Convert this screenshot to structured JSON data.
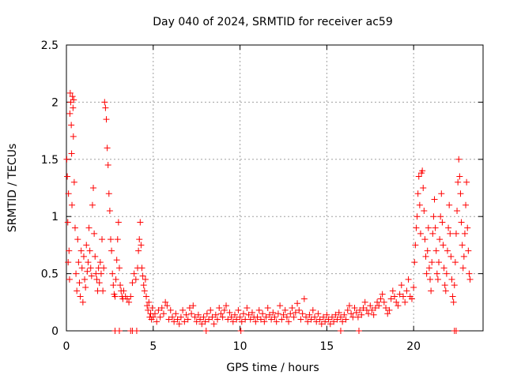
{
  "chart_data": {
    "type": "scatter",
    "title": "Day 040 of 2024, SRMTID for receiver ac59",
    "xlabel": "GPS time / hours",
    "ylabel": "SRMTID / TECUs",
    "xlim": [
      0,
      24
    ],
    "ylim": [
      0,
      2.5
    ],
    "grid": true,
    "marker": "+",
    "color": "#ff0000",
    "x_ticks": [
      0,
      5,
      10,
      15,
      20
    ],
    "x_tick_labels": [
      "0",
      "5",
      "10",
      "15",
      "20"
    ],
    "y_ticks": [
      0,
      0.5,
      1,
      1.5,
      2,
      2.5
    ],
    "y_tick_labels": [
      "0",
      "0.5",
      "1",
      "1.5",
      "2",
      "2.5"
    ],
    "series": [
      {
        "name": "SRMTID",
        "points": [
          [
            0.02,
            1.5
          ],
          [
            0.05,
            1.35
          ],
          [
            0.08,
            0.95
          ],
          [
            0.1,
            0.6
          ],
          [
            0.12,
            1.2
          ],
          [
            0.15,
            0.7
          ],
          [
            0.18,
            0.45
          ],
          [
            0.2,
            1.9
          ],
          [
            0.22,
            2.08
          ],
          [
            0.25,
            2.0
          ],
          [
            0.28,
            1.8
          ],
          [
            0.3,
            1.55
          ],
          [
            0.32,
            1.1
          ],
          [
            0.35,
            2.05
          ],
          [
            0.38,
            1.95
          ],
          [
            0.4,
            1.7
          ],
          [
            0.42,
            2.02
          ],
          [
            0.45,
            1.3
          ],
          [
            0.5,
            0.9
          ],
          [
            0.55,
            0.5
          ],
          [
            0.6,
            0.35
          ],
          [
            0.65,
            0.8
          ],
          [
            0.7,
            0.6
          ],
          [
            0.75,
            0.42
          ],
          [
            0.8,
            0.3
          ],
          [
            0.85,
            0.7
          ],
          [
            0.9,
            0.55
          ],
          [
            0.95,
            0.25
          ],
          [
            1.0,
            0.65
          ],
          [
            1.05,
            0.45
          ],
          [
            1.1,
            0.38
          ],
          [
            1.15,
            0.75
          ],
          [
            1.2,
            0.52
          ],
          [
            1.25,
            0.6
          ],
          [
            1.3,
            0.9
          ],
          [
            1.35,
            0.7
          ],
          [
            1.4,
            0.55
          ],
          [
            1.45,
            0.48
          ],
          [
            1.5,
            1.1
          ],
          [
            1.55,
            1.25
          ],
          [
            1.6,
            0.85
          ],
          [
            1.65,
            0.65
          ],
          [
            1.7,
            0.5
          ],
          [
            1.75,
            0.45
          ],
          [
            1.8,
            0.35
          ],
          [
            1.85,
            0.55
          ],
          [
            1.9,
            0.42
          ],
          [
            1.95,
            0.6
          ],
          [
            2.0,
            0.5
          ],
          [
            2.05,
            0.8
          ],
          [
            2.1,
            0.35
          ],
          [
            2.15,
            0.55
          ],
          [
            2.2,
            2.0
          ],
          [
            2.25,
            1.95
          ],
          [
            2.3,
            1.85
          ],
          [
            2.35,
            1.6
          ],
          [
            2.4,
            1.45
          ],
          [
            2.45,
            1.2
          ],
          [
            2.5,
            1.05
          ],
          [
            2.55,
            0.8
          ],
          [
            2.6,
            0.7
          ],
          [
            2.65,
            0.5
          ],
          [
            2.7,
            0.4
          ],
          [
            2.75,
            0.32
          ],
          [
            2.8,
            0.3
          ],
          [
            2.85,
            0.45
          ],
          [
            2.9,
            0.62
          ],
          [
            2.95,
            0.8
          ],
          [
            3.0,
            0.95
          ],
          [
            3.05,
            0.55
          ],
          [
            3.1,
            0.4
          ],
          [
            3.15,
            0.35
          ],
          [
            3.2,
            0.3
          ],
          [
            3.25,
            0.28
          ],
          [
            3.3,
            0.35
          ],
          [
            3.4,
            0.3
          ],
          [
            3.5,
            0.28
          ],
          [
            3.6,
            0.25
          ],
          [
            3.7,
            0.3
          ],
          [
            3.8,
            0.42
          ],
          [
            3.9,
            0.5
          ],
          [
            4.0,
            0.45
          ],
          [
            4.1,
            0.55
          ],
          [
            4.15,
            0.7
          ],
          [
            4.2,
            0.8
          ],
          [
            4.25,
            0.95
          ],
          [
            4.3,
            0.75
          ],
          [
            4.35,
            0.55
          ],
          [
            4.4,
            0.48
          ],
          [
            4.45,
            0.4
          ],
          [
            4.5,
            0.35
          ],
          [
            4.55,
            0.45
          ],
          [
            4.6,
            0.3
          ],
          [
            4.65,
            0.22
          ],
          [
            4.7,
            0.18
          ],
          [
            4.75,
            0.25
          ],
          [
            4.8,
            0.12
          ],
          [
            4.85,
            0.15
          ],
          [
            4.9,
            0.1
          ],
          [
            4.95,
            0.2
          ],
          [
            5.0,
            0.12
          ],
          [
            5.1,
            0.15
          ],
          [
            5.2,
            0.08
          ],
          [
            5.3,
            0.18
          ],
          [
            5.4,
            0.12
          ],
          [
            5.5,
            0.2
          ],
          [
            5.6,
            0.15
          ],
          [
            5.7,
            0.25
          ],
          [
            5.8,
            0.22
          ],
          [
            5.9,
            0.1
          ],
          [
            6.0,
            0.18
          ],
          [
            6.1,
            0.12
          ],
          [
            6.2,
            0.08
          ],
          [
            6.3,
            0.15
          ],
          [
            6.4,
            0.1
          ],
          [
            6.5,
            0.06
          ],
          [
            6.6,
            0.12
          ],
          [
            6.7,
            0.18
          ],
          [
            6.8,
            0.08
          ],
          [
            6.9,
            0.14
          ],
          [
            7.0,
            0.1
          ],
          [
            7.1,
            0.2
          ],
          [
            7.2,
            0.15
          ],
          [
            7.3,
            0.22
          ],
          [
            7.4,
            0.12
          ],
          [
            7.5,
            0.08
          ],
          [
            7.6,
            0.14
          ],
          [
            7.7,
            0.1
          ],
          [
            7.8,
            0.06
          ],
          [
            7.9,
            0.12
          ],
          [
            8.0,
            0.08
          ],
          [
            8.1,
            0.15
          ],
          [
            8.2,
            0.1
          ],
          [
            8.3,
            0.18
          ],
          [
            8.4,
            0.12
          ],
          [
            8.5,
            0.06
          ],
          [
            8.6,
            0.14
          ],
          [
            8.7,
            0.1
          ],
          [
            8.8,
            0.2
          ],
          [
            8.9,
            0.15
          ],
          [
            9.0,
            0.12
          ],
          [
            9.1,
            0.18
          ],
          [
            9.2,
            0.22
          ],
          [
            9.3,
            0.1
          ],
          [
            9.4,
            0.16
          ],
          [
            9.5,
            0.12
          ],
          [
            9.6,
            0.08
          ],
          [
            9.7,
            0.14
          ],
          [
            9.8,
            0.1
          ],
          [
            9.9,
            0.18
          ],
          [
            10.0,
            0.12
          ],
          [
            10.1,
            0.08
          ],
          [
            10.2,
            0.15
          ],
          [
            10.3,
            0.1
          ],
          [
            10.4,
            0.2
          ],
          [
            10.5,
            0.14
          ],
          [
            10.6,
            0.1
          ],
          [
            10.7,
            0.16
          ],
          [
            10.8,
            0.12
          ],
          [
            10.9,
            0.08
          ],
          [
            11.0,
            0.12
          ],
          [
            11.1,
            0.18
          ],
          [
            11.2,
            0.1
          ],
          [
            11.3,
            0.15
          ],
          [
            11.4,
            0.08
          ],
          [
            11.5,
            0.12
          ],
          [
            11.6,
            0.2
          ],
          [
            11.7,
            0.14
          ],
          [
            11.8,
            0.1
          ],
          [
            11.9,
            0.16
          ],
          [
            12.0,
            0.12
          ],
          [
            12.1,
            0.08
          ],
          [
            12.2,
            0.15
          ],
          [
            12.3,
            0.22
          ],
          [
            12.4,
            0.1
          ],
          [
            12.5,
            0.14
          ],
          [
            12.6,
            0.18
          ],
          [
            12.7,
            0.12
          ],
          [
            12.8,
            0.08
          ],
          [
            12.9,
            0.15
          ],
          [
            13.0,
            0.2
          ],
          [
            13.1,
            0.12
          ],
          [
            13.2,
            0.16
          ],
          [
            13.3,
            0.24
          ],
          [
            13.4,
            0.18
          ],
          [
            13.5,
            0.1
          ],
          [
            13.6,
            0.15
          ],
          [
            13.7,
            0.28
          ],
          [
            13.8,
            0.12
          ],
          [
            13.9,
            0.08
          ],
          [
            14.0,
            0.14
          ],
          [
            14.1,
            0.1
          ],
          [
            14.2,
            0.18
          ],
          [
            14.3,
            0.12
          ],
          [
            14.4,
            0.08
          ],
          [
            14.5,
            0.15
          ],
          [
            14.6,
            0.1
          ],
          [
            14.7,
            0.06
          ],
          [
            14.8,
            0.12
          ],
          [
            14.9,
            0.08
          ],
          [
            15.0,
            0.14
          ],
          [
            15.1,
            0.1
          ],
          [
            15.2,
            0.06
          ],
          [
            15.3,
            0.12
          ],
          [
            15.4,
            0.08
          ],
          [
            15.5,
            0.14
          ],
          [
            15.6,
            0.1
          ],
          [
            15.7,
            0.16
          ],
          [
            15.8,
            0.12
          ],
          [
            15.9,
            0.08
          ],
          [
            16.0,
            0.14
          ],
          [
            16.1,
            0.1
          ],
          [
            16.2,
            0.18
          ],
          [
            16.3,
            0.22
          ],
          [
            16.4,
            0.15
          ],
          [
            16.5,
            0.12
          ],
          [
            16.6,
            0.2
          ],
          [
            16.7,
            0.16
          ],
          [
            16.8,
            0.12
          ],
          [
            16.9,
            0.18
          ],
          [
            17.0,
            0.14
          ],
          [
            17.1,
            0.2
          ],
          [
            17.2,
            0.25
          ],
          [
            17.3,
            0.18
          ],
          [
            17.4,
            0.15
          ],
          [
            17.5,
            0.22
          ],
          [
            17.6,
            0.18
          ],
          [
            17.7,
            0.14
          ],
          [
            17.8,
            0.2
          ],
          [
            17.9,
            0.25
          ],
          [
            18.0,
            0.22
          ],
          [
            18.1,
            0.28
          ],
          [
            18.2,
            0.32
          ],
          [
            18.3,
            0.25
          ],
          [
            18.4,
            0.2
          ],
          [
            18.5,
            0.15
          ],
          [
            18.6,
            0.18
          ],
          [
            18.7,
            0.28
          ],
          [
            18.8,
            0.35
          ],
          [
            18.9,
            0.3
          ],
          [
            19.0,
            0.25
          ],
          [
            19.1,
            0.22
          ],
          [
            19.2,
            0.32
          ],
          [
            19.3,
            0.4
          ],
          [
            19.4,
            0.3
          ],
          [
            19.5,
            0.25
          ],
          [
            19.6,
            0.35
          ],
          [
            19.7,
            0.45
          ],
          [
            19.8,
            0.3
          ],
          [
            19.9,
            0.28
          ],
          [
            20.0,
            0.38
          ],
          [
            20.05,
            0.6
          ],
          [
            20.1,
            0.75
          ],
          [
            20.15,
            0.9
          ],
          [
            20.2,
            1.0
          ],
          [
            20.25,
            1.2
          ],
          [
            20.3,
            1.35
          ],
          [
            20.35,
            1.1
          ],
          [
            20.4,
            0.85
          ],
          [
            20.45,
            1.38
          ],
          [
            20.5,
            1.4
          ],
          [
            20.55,
            1.25
          ],
          [
            20.6,
            1.05
          ],
          [
            20.65,
            0.8
          ],
          [
            20.7,
            0.65
          ],
          [
            20.75,
            0.5
          ],
          [
            20.8,
            0.7
          ],
          [
            20.85,
            0.9
          ],
          [
            20.9,
            0.55
          ],
          [
            20.95,
            0.45
          ],
          [
            21.0,
            0.35
          ],
          [
            21.05,
            0.6
          ],
          [
            21.1,
            0.85
          ],
          [
            21.15,
            1.0
          ],
          [
            21.2,
            1.15
          ],
          [
            21.25,
            0.9
          ],
          [
            21.3,
            0.7
          ],
          [
            21.35,
            0.5
          ],
          [
            21.4,
            0.45
          ],
          [
            21.45,
            0.6
          ],
          [
            21.5,
            0.8
          ],
          [
            21.55,
            1.0
          ],
          [
            21.6,
            1.2
          ],
          [
            21.65,
            0.95
          ],
          [
            21.7,
            0.75
          ],
          [
            21.75,
            0.55
          ],
          [
            21.8,
            0.4
          ],
          [
            21.85,
            0.35
          ],
          [
            21.9,
            0.5
          ],
          [
            21.95,
            0.7
          ],
          [
            22.0,
            0.9
          ],
          [
            22.05,
            1.1
          ],
          [
            22.1,
            0.85
          ],
          [
            22.15,
            0.65
          ],
          [
            22.2,
            0.45
          ],
          [
            22.25,
            0.3
          ],
          [
            22.3,
            0.25
          ],
          [
            22.35,
            0.4
          ],
          [
            22.4,
            0.6
          ],
          [
            22.45,
            0.85
          ],
          [
            22.5,
            1.05
          ],
          [
            22.55,
            1.3
          ],
          [
            22.6,
            1.5
          ],
          [
            22.65,
            1.35
          ],
          [
            22.7,
            1.2
          ],
          [
            22.75,
            0.95
          ],
          [
            22.8,
            0.75
          ],
          [
            22.85,
            0.55
          ],
          [
            22.9,
            0.65
          ],
          [
            22.95,
            0.85
          ],
          [
            23.0,
            1.1
          ],
          [
            23.05,
            1.3
          ],
          [
            23.1,
            0.9
          ],
          [
            23.15,
            0.7
          ],
          [
            23.2,
            0.5
          ],
          [
            23.25,
            0.45
          ]
        ]
      }
    ],
    "zero_markers_x": [
      2.8,
      3.05,
      3.7,
      3.8,
      4.05,
      8.05,
      10.05,
      15.8,
      16.85,
      22.35,
      22.45
    ]
  }
}
